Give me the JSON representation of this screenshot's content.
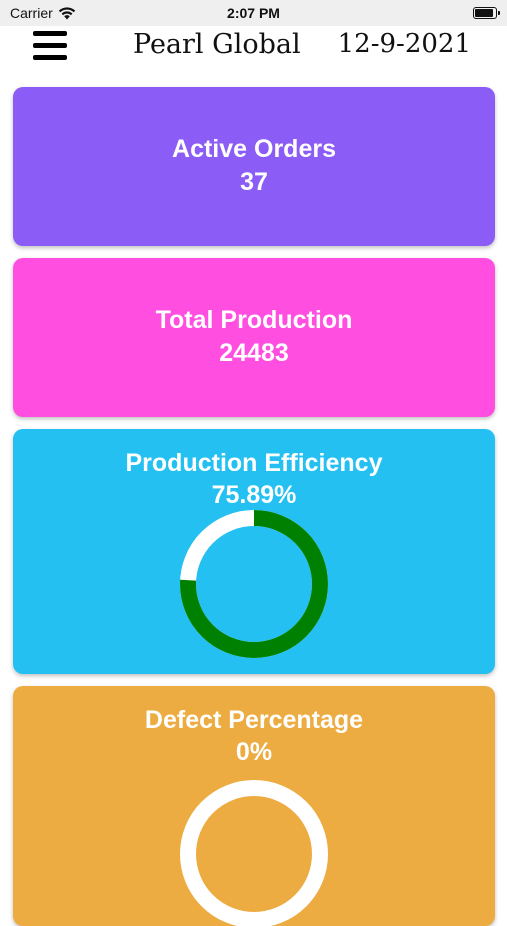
{
  "status_bar": {
    "carrier": "Carrier",
    "time": "2:07 PM",
    "wifi_icon": "wifi-icon",
    "battery_icon": "battery-icon"
  },
  "header": {
    "menu_icon": "hamburger-menu-icon",
    "title": "Pearl Global",
    "date": "12-9-2021"
  },
  "cards": {
    "active_orders": {
      "label": "Active Orders",
      "value": "37",
      "color": "#8b5cf6"
    },
    "total_production": {
      "label": "Total Production",
      "value": "24483",
      "color": "#ff4ee0"
    },
    "production_efficiency": {
      "label": "Production Efficiency",
      "value": "75.89%",
      "percent": 75.89,
      "color": "#24c0f2",
      "ring_fill_color": "#008000",
      "ring_track_color": "#ffffff"
    },
    "defect_percentage": {
      "label": "Defect Percentage",
      "value": "0%",
      "percent": 0,
      "color": "#ecac42",
      "ring_fill_color": "#008000",
      "ring_track_color": "#ffffff"
    }
  }
}
